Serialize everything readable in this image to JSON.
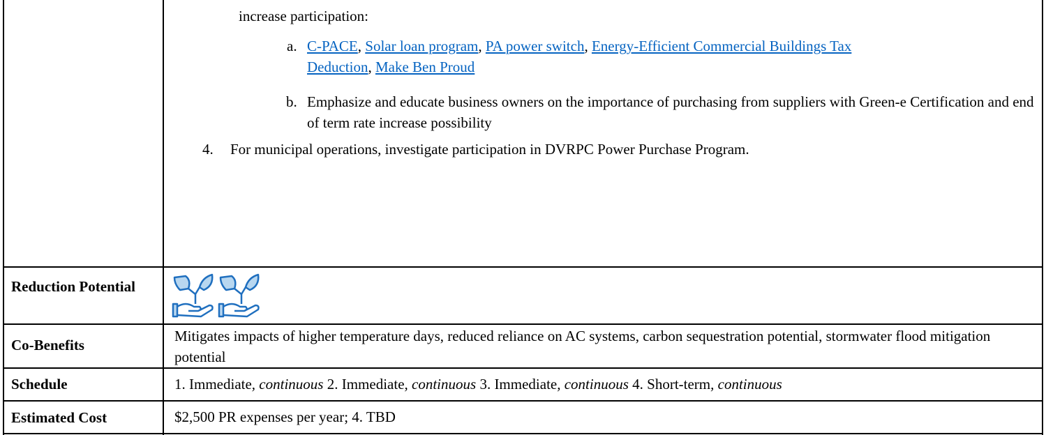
{
  "table": {
    "continuation": {
      "intro": "increase participation:",
      "subitems": [
        {
          "marker": "a.",
          "links": [
            "C-PACE",
            "Solar loan program",
            "PA power switch",
            "Energy-Efficient Commercial Buildings Tax Deduction",
            "Make Ben Proud"
          ],
          "separator": ","
        },
        {
          "marker": "b.",
          "text": "Emphasize and educate business owners on the importance of purchasing from suppliers with Green-e Certification and end of term rate increase possibility"
        }
      ],
      "item": {
        "marker": "4.",
        "text": "For municipal operations, investigate participation in DVRPC Power Purchase Program."
      }
    },
    "rows": [
      {
        "label": "Reduction Potential"
      },
      {
        "label": "Co-Benefits",
        "text": "Mitigates impacts of higher temperature days, reduced reliance on AC systems, carbon sequestration potential, stormwater flood mitigation potential"
      },
      {
        "label": "Schedule",
        "entries": [
          {
            "timing": "1.  Immediate",
            "mode": ", continuous"
          },
          {
            "timing": "2. Immediate",
            "mode": ", continuous"
          },
          {
            "timing": "3. Immediate",
            "mode": ", continuous"
          },
          {
            "timing": "4. Short-term",
            "mode": ", continuous"
          }
        ]
      },
      {
        "label": "Estimated Cost",
        "text": "$2,500 PR expenses per year; 4. TBD"
      }
    ]
  }
}
